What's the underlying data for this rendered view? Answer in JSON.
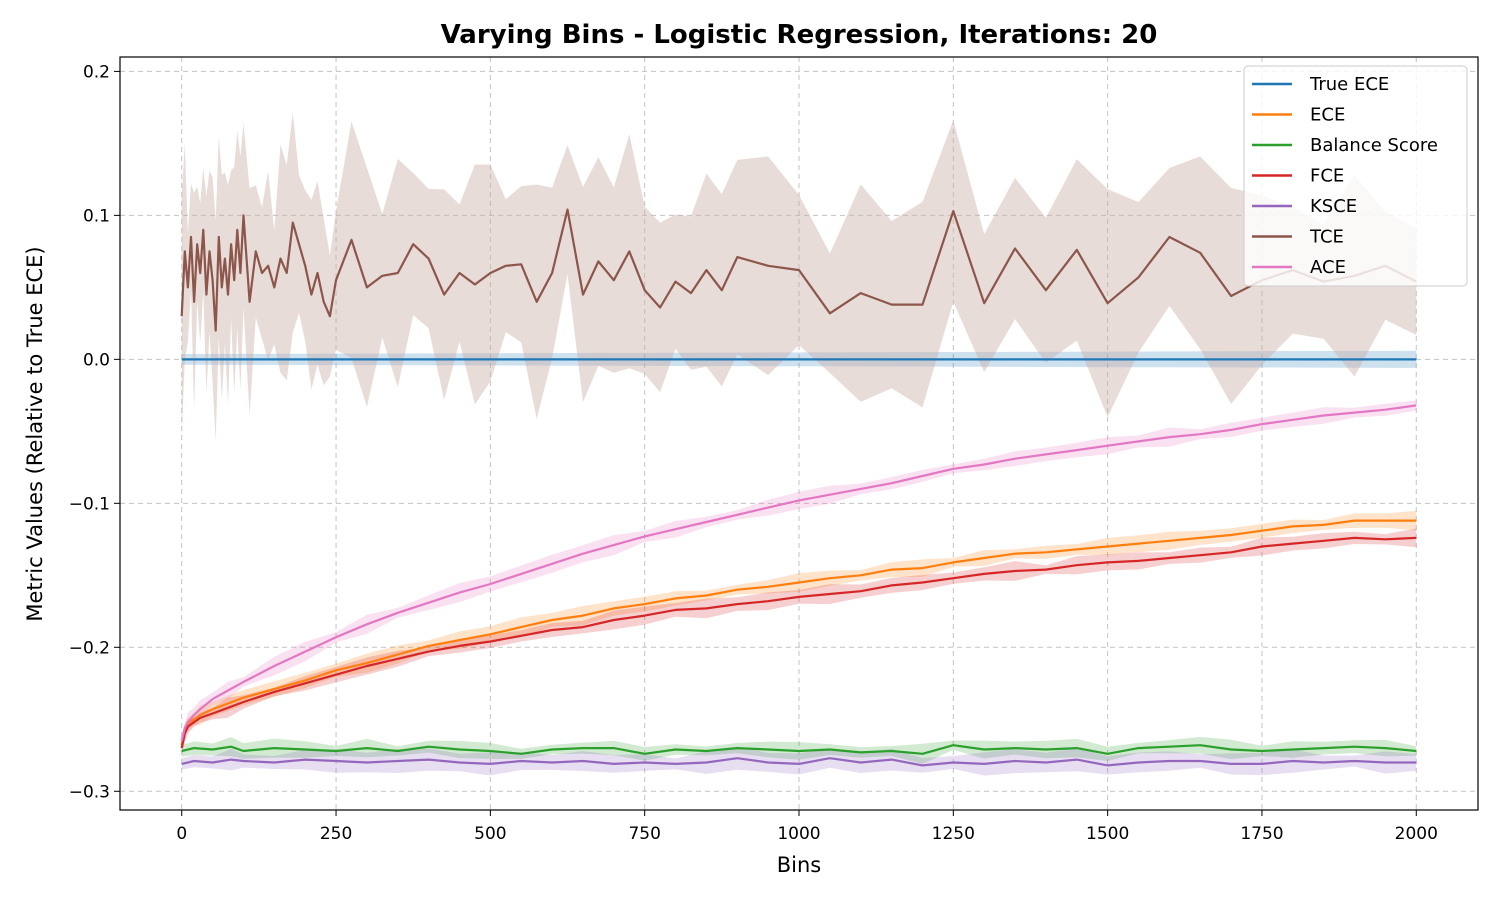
{
  "chart_data": {
    "type": "line",
    "title": "Varying Bins - Logistic Regression, Iterations: 20",
    "xlabel": "Bins",
    "ylabel": "Metric Values (Relative to True ECE)",
    "xlim": [
      -100,
      2100
    ],
    "ylim": [
      -0.313,
      0.21
    ],
    "xticks": [
      0,
      250,
      500,
      750,
      1000,
      1250,
      1500,
      1750,
      2000
    ],
    "xtick_labels": [
      "0",
      "250",
      "500",
      "750",
      "1000",
      "1250",
      "1500",
      "1750",
      "2000"
    ],
    "yticks": [
      -0.3,
      -0.2,
      -0.1,
      0.0,
      0.1,
      0.2
    ],
    "ytick_labels": [
      "−0.3",
      "−0.2",
      "−0.1",
      "0.0",
      "0.1",
      "0.2"
    ],
    "grid": true,
    "legend_position": "top-right",
    "series": [
      {
        "name": "True ECE",
        "color": "#1f77b4",
        "band_color": "#1f77b4",
        "x": [
          0,
          2000
        ],
        "y": [
          0.0,
          0.0
        ],
        "band": 0.005
      },
      {
        "name": "ECE",
        "color": "#ff7f0e",
        "band_color": "#ff7f0e",
        "x": [
          0,
          5,
          10,
          20,
          30,
          50,
          75,
          100,
          150,
          200,
          250,
          300,
          350,
          400,
          450,
          500,
          550,
          600,
          650,
          700,
          750,
          800,
          850,
          900,
          950,
          1000,
          1050,
          1100,
          1150,
          1200,
          1250,
          1300,
          1350,
          1400,
          1450,
          1500,
          1550,
          1600,
          1650,
          1700,
          1750,
          1800,
          1850,
          1900,
          1950,
          2000
        ],
        "y": [
          -0.268,
          -0.258,
          -0.253,
          -0.25,
          -0.247,
          -0.243,
          -0.239,
          -0.235,
          -0.229,
          -0.223,
          -0.216,
          -0.211,
          -0.205,
          -0.199,
          -0.195,
          -0.191,
          -0.186,
          -0.181,
          -0.178,
          -0.173,
          -0.17,
          -0.166,
          -0.164,
          -0.16,
          -0.158,
          -0.155,
          -0.152,
          -0.15,
          -0.146,
          -0.145,
          -0.141,
          -0.138,
          -0.135,
          -0.134,
          -0.132,
          -0.13,
          -0.128,
          -0.126,
          -0.124,
          -0.122,
          -0.119,
          -0.116,
          -0.115,
          -0.112,
          -0.112,
          -0.112
        ],
        "band": 0.005
      },
      {
        "name": "Balance Score",
        "color": "#2ca02c",
        "band_color": "#2ca02c",
        "x": [
          0,
          20,
          50,
          80,
          100,
          150,
          200,
          250,
          300,
          350,
          400,
          450,
          500,
          550,
          600,
          650,
          700,
          750,
          800,
          850,
          900,
          950,
          1000,
          1050,
          1100,
          1150,
          1200,
          1250,
          1300,
          1350,
          1400,
          1450,
          1500,
          1550,
          1600,
          1650,
          1700,
          1750,
          1800,
          1850,
          1900,
          1950,
          2000
        ],
        "y": [
          -0.272,
          -0.27,
          -0.271,
          -0.269,
          -0.272,
          -0.27,
          -0.271,
          -0.272,
          -0.27,
          -0.272,
          -0.269,
          -0.271,
          -0.272,
          -0.274,
          -0.271,
          -0.27,
          -0.27,
          -0.274,
          -0.271,
          -0.272,
          -0.27,
          -0.271,
          -0.272,
          -0.271,
          -0.273,
          -0.272,
          -0.274,
          -0.268,
          -0.271,
          -0.27,
          -0.271,
          -0.27,
          -0.274,
          -0.27,
          -0.269,
          -0.268,
          -0.271,
          -0.272,
          -0.271,
          -0.27,
          -0.269,
          -0.27,
          -0.272
        ],
        "band": 0.005
      },
      {
        "name": "FCE",
        "color": "#d62728",
        "band_color": "#d62728",
        "x": [
          0,
          5,
          10,
          20,
          30,
          50,
          75,
          100,
          150,
          200,
          250,
          300,
          350,
          400,
          450,
          500,
          550,
          600,
          650,
          700,
          750,
          800,
          850,
          900,
          950,
          1000,
          1050,
          1100,
          1150,
          1200,
          1250,
          1300,
          1350,
          1400,
          1450,
          1500,
          1550,
          1600,
          1650,
          1700,
          1750,
          1800,
          1850,
          1900,
          1950,
          2000
        ],
        "y": [
          -0.27,
          -0.26,
          -0.255,
          -0.252,
          -0.249,
          -0.246,
          -0.242,
          -0.238,
          -0.231,
          -0.225,
          -0.219,
          -0.213,
          -0.208,
          -0.203,
          -0.199,
          -0.196,
          -0.192,
          -0.188,
          -0.186,
          -0.181,
          -0.178,
          -0.174,
          -0.173,
          -0.17,
          -0.168,
          -0.165,
          -0.163,
          -0.161,
          -0.157,
          -0.155,
          -0.152,
          -0.149,
          -0.147,
          -0.146,
          -0.143,
          -0.141,
          -0.14,
          -0.138,
          -0.136,
          -0.134,
          -0.13,
          -0.128,
          -0.126,
          -0.124,
          -0.125,
          -0.124
        ],
        "band": 0.005
      },
      {
        "name": "KSCE",
        "color": "#9467bd",
        "band_color": "#9467bd",
        "x": [
          0,
          20,
          50,
          80,
          100,
          150,
          200,
          250,
          300,
          350,
          400,
          450,
          500,
          550,
          600,
          650,
          700,
          750,
          800,
          850,
          900,
          950,
          1000,
          1050,
          1100,
          1150,
          1200,
          1250,
          1300,
          1350,
          1400,
          1450,
          1500,
          1550,
          1600,
          1650,
          1700,
          1750,
          1800,
          1850,
          1900,
          1950,
          2000
        ],
        "y": [
          -0.281,
          -0.279,
          -0.28,
          -0.278,
          -0.279,
          -0.28,
          -0.278,
          -0.279,
          -0.28,
          -0.279,
          -0.278,
          -0.28,
          -0.281,
          -0.279,
          -0.28,
          -0.279,
          -0.281,
          -0.28,
          -0.281,
          -0.28,
          -0.277,
          -0.28,
          -0.281,
          -0.277,
          -0.28,
          -0.278,
          -0.282,
          -0.28,
          -0.281,
          -0.279,
          -0.28,
          -0.278,
          -0.282,
          -0.28,
          -0.279,
          -0.279,
          -0.281,
          -0.281,
          -0.279,
          -0.28,
          -0.279,
          -0.28,
          -0.28
        ],
        "band": 0.006
      },
      {
        "name": "TCE",
        "color": "#8c564b",
        "band_color": "#c9aba5",
        "x": [
          0,
          5,
          10,
          15,
          20,
          25,
          30,
          35,
          40,
          45,
          50,
          55,
          60,
          65,
          70,
          75,
          80,
          85,
          90,
          95,
          100,
          110,
          120,
          130,
          140,
          150,
          160,
          170,
          180,
          190,
          200,
          210,
          220,
          230,
          240,
          250,
          275,
          300,
          325,
          350,
          375,
          400,
          425,
          450,
          475,
          500,
          525,
          550,
          575,
          600,
          625,
          650,
          675,
          700,
          725,
          750,
          775,
          800,
          825,
          850,
          875,
          900,
          950,
          1000,
          1050,
          1100,
          1150,
          1200,
          1250,
          1300,
          1350,
          1400,
          1450,
          1500,
          1550,
          1600,
          1650,
          1700,
          1750,
          1800,
          1850,
          1900,
          1950,
          2000
        ],
        "y": [
          0.03,
          0.075,
          0.05,
          0.085,
          0.04,
          0.08,
          0.06,
          0.09,
          0.045,
          0.075,
          0.055,
          0.02,
          0.085,
          0.05,
          0.07,
          0.045,
          0.08,
          0.055,
          0.09,
          0.06,
          0.1,
          0.04,
          0.075,
          0.06,
          0.065,
          0.05,
          0.07,
          0.06,
          0.095,
          0.08,
          0.065,
          0.045,
          0.06,
          0.04,
          0.03,
          0.055,
          0.083,
          0.05,
          0.058,
          0.06,
          0.08,
          0.07,
          0.045,
          0.06,
          0.052,
          0.06,
          0.065,
          0.066,
          0.04,
          0.06,
          0.104,
          0.045,
          0.068,
          0.055,
          0.075,
          0.048,
          0.036,
          0.054,
          0.046,
          0.062,
          0.048,
          0.071,
          0.065,
          0.062,
          0.032,
          0.046,
          0.038,
          0.038,
          0.103,
          0.039,
          0.077,
          0.048,
          0.076,
          0.039,
          0.057,
          0.085,
          0.074,
          0.044,
          0.055,
          0.062,
          0.054,
          0.058,
          0.065,
          0.054
        ],
        "band": 0.06
      },
      {
        "name": "ACE",
        "color": "#e377c2",
        "band_color": "#e377c2",
        "x": [
          0,
          5,
          10,
          20,
          30,
          50,
          75,
          100,
          150,
          200,
          250,
          300,
          350,
          400,
          450,
          500,
          550,
          600,
          650,
          700,
          750,
          800,
          850,
          900,
          950,
          1000,
          1050,
          1100,
          1150,
          1200,
          1250,
          1300,
          1350,
          1400,
          1450,
          1500,
          1550,
          1600,
          1650,
          1700,
          1750,
          1800,
          1850,
          1900,
          1950,
          2000
        ],
        "y": [
          -0.265,
          -0.256,
          -0.252,
          -0.247,
          -0.243,
          -0.236,
          -0.23,
          -0.224,
          -0.213,
          -0.203,
          -0.193,
          -0.184,
          -0.176,
          -0.169,
          -0.162,
          -0.156,
          -0.149,
          -0.142,
          -0.135,
          -0.129,
          -0.123,
          -0.118,
          -0.113,
          -0.108,
          -0.103,
          -0.098,
          -0.094,
          -0.09,
          -0.086,
          -0.081,
          -0.076,
          -0.073,
          -0.069,
          -0.066,
          -0.063,
          -0.06,
          -0.057,
          -0.054,
          -0.052,
          -0.049,
          -0.045,
          -0.042,
          -0.039,
          -0.037,
          -0.035,
          -0.032
        ],
        "band": 0.005
      }
    ]
  }
}
